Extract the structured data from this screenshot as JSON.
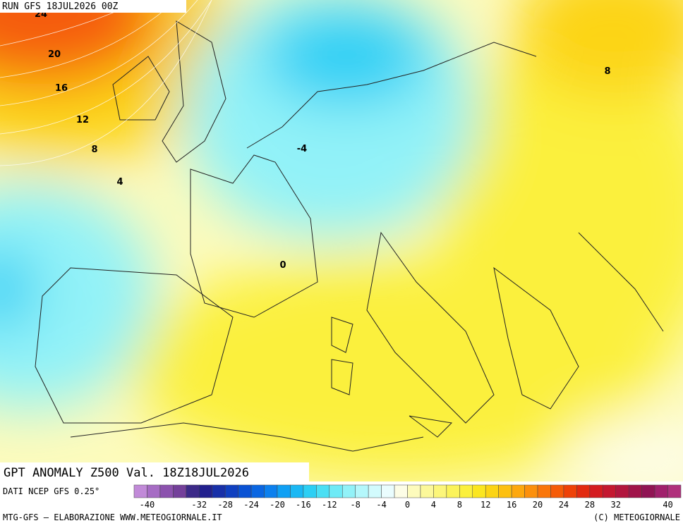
{
  "header": {
    "run": "RUN GFS 18JUL2026 00Z"
  },
  "map": {
    "contour_labels": [
      24,
      20,
      16,
      12,
      8,
      4,
      -4,
      0,
      8
    ]
  },
  "footer": {
    "title": "GPT ANOMALY Z500 Val. 18Z18JUL2026",
    "source": "DATI NCEP GFS 0.25°",
    "credit": "MTG-GFS — ELABORAZIONE WWW.METEOGIORNALE.IT",
    "copyright": "(C) METEOGIORNALE"
  },
  "colorbar": {
    "lim": [
      -42,
      42
    ],
    "colors": [
      "#c18ad8",
      "#a66cc4",
      "#8c52ae",
      "#74409a",
      "#3c2a88",
      "#22208e",
      "#1830a8",
      "#1040c0",
      "#0a52d4",
      "#0a66e2",
      "#0c80ee",
      "#10a0f4",
      "#1ab8f4",
      "#2ccff4",
      "#4adff4",
      "#6eeaf6",
      "#92f2f8",
      "#b4f7fb",
      "#d2fbfd",
      "#eafdfe",
      "#fdfde6",
      "#fdfbbc",
      "#fcf89a",
      "#fcf67a",
      "#fbf35a",
      "#fbf03c",
      "#fbe620",
      "#fcd414",
      "#fdc010",
      "#fda80e",
      "#fc900c",
      "#fa760a",
      "#f55c08",
      "#ee4208",
      "#e22a10",
      "#d41c20",
      "#c41830",
      "#b2163e",
      "#a0144a",
      "#901454",
      "#a0206c",
      "#b0307c"
    ],
    "ticks": [
      -40,
      -32,
      -28,
      -24,
      -20,
      -16,
      -12,
      -8,
      -4,
      0,
      4,
      8,
      12,
      16,
      20,
      24,
      28,
      32,
      40
    ]
  }
}
